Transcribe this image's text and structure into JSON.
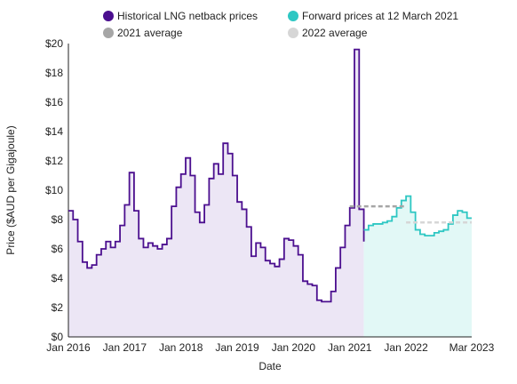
{
  "chart_data": {
    "type": "line",
    "xlabel": "Date",
    "ylabel": "Price ($AUD per Gigajoule)",
    "ylim": [
      0,
      20
    ],
    "yticks": [
      0,
      2,
      4,
      6,
      8,
      10,
      12,
      14,
      16,
      18,
      20
    ],
    "ytick_labels": [
      "$0",
      "$2",
      "$4",
      "$6",
      "$8",
      "$10",
      "$12",
      "$14",
      "$16",
      "$18",
      "$20"
    ],
    "xlim": [
      "2016-01",
      "2023-03"
    ],
    "xtick_labels": [
      {
        "date": "2016-01",
        "label": "Jan 2016"
      },
      {
        "date": "2017-01",
        "label": "Jan 2017"
      },
      {
        "date": "2018-01",
        "label": "Jan 2018"
      },
      {
        "date": "2019-01",
        "label": "Jan 2019"
      },
      {
        "date": "2020-01",
        "label": "Jan 2020"
      },
      {
        "date": "2021-01",
        "label": "Jan 2021"
      },
      {
        "date": "2022-01",
        "label": "Jan 2022"
      },
      {
        "date": "2023-03",
        "label": "Mar 2023"
      }
    ],
    "grid": false,
    "legend_position": "top",
    "series": [
      {
        "name": "Historical LNG netback prices",
        "color": "#4b0f8f",
        "fill": "#ece6f5",
        "style": "step",
        "x": [
          "2016-01",
          "2016-02",
          "2016-03",
          "2016-04",
          "2016-05",
          "2016-06",
          "2016-07",
          "2016-08",
          "2016-09",
          "2016-10",
          "2016-11",
          "2016-12",
          "2017-01",
          "2017-02",
          "2017-03",
          "2017-04",
          "2017-05",
          "2017-06",
          "2017-07",
          "2017-08",
          "2017-09",
          "2017-10",
          "2017-11",
          "2017-12",
          "2018-01",
          "2018-02",
          "2018-03",
          "2018-04",
          "2018-05",
          "2018-06",
          "2018-07",
          "2018-08",
          "2018-09",
          "2018-10",
          "2018-11",
          "2018-12",
          "2019-01",
          "2019-02",
          "2019-03",
          "2019-04",
          "2019-05",
          "2019-06",
          "2019-07",
          "2019-08",
          "2019-09",
          "2019-10",
          "2019-11",
          "2019-12",
          "2020-01",
          "2020-02",
          "2020-03",
          "2020-04",
          "2020-05",
          "2020-06",
          "2020-07",
          "2020-08",
          "2020-09",
          "2020-10",
          "2020-11",
          "2020-12",
          "2021-01",
          "2021-02",
          "2021-03",
          "2021-04"
        ],
        "values": [
          8.6,
          8.0,
          6.5,
          5.1,
          4.7,
          4.9,
          5.6,
          6.0,
          6.5,
          6.1,
          6.5,
          7.6,
          9.0,
          11.2,
          8.6,
          6.7,
          6.1,
          6.4,
          6.2,
          6.0,
          6.3,
          6.7,
          8.9,
          10.2,
          11.1,
          12.2,
          11.0,
          8.5,
          7.8,
          9.0,
          10.8,
          11.8,
          11.1,
          13.2,
          12.5,
          11.0,
          9.2,
          8.7,
          7.5,
          5.5,
          6.4,
          6.1,
          5.2,
          5.0,
          4.8,
          5.3,
          6.7,
          6.6,
          6.2,
          5.6,
          3.8,
          3.6,
          3.5,
          2.5,
          2.4,
          2.4,
          3.1,
          4.7,
          6.1,
          7.6,
          8.8,
          19.6,
          8.7,
          6.5
        ]
      },
      {
        "name": "Forward prices at 12 March 2021",
        "color": "#2ec7c3",
        "fill": "#e2f8f6",
        "style": "step",
        "x": [
          "2021-04",
          "2021-05",
          "2021-06",
          "2021-07",
          "2021-08",
          "2021-09",
          "2021-10",
          "2021-11",
          "2021-12",
          "2022-01",
          "2022-02",
          "2022-03",
          "2022-04",
          "2022-05",
          "2022-06",
          "2022-07",
          "2022-08",
          "2022-09",
          "2022-10",
          "2022-11",
          "2022-12",
          "2023-01",
          "2023-02",
          "2023-03"
        ],
        "values": [
          7.3,
          7.6,
          7.7,
          7.7,
          7.8,
          7.9,
          8.2,
          8.8,
          9.3,
          9.6,
          8.5,
          7.3,
          7.0,
          6.9,
          6.9,
          7.1,
          7.2,
          7.3,
          7.7,
          8.3,
          8.6,
          8.5,
          8.1,
          8.1
        ]
      },
      {
        "name": "2021 average",
        "color": "#a6a6a6",
        "style": "dashed",
        "x": [
          "2021-01",
          "2022-01"
        ],
        "values": [
          8.9,
          8.9
        ]
      },
      {
        "name": "2022 average",
        "color": "#d6d6d6",
        "style": "dashed",
        "x": [
          "2022-01",
          "2023-03"
        ],
        "values": [
          7.8,
          7.8
        ]
      }
    ]
  }
}
